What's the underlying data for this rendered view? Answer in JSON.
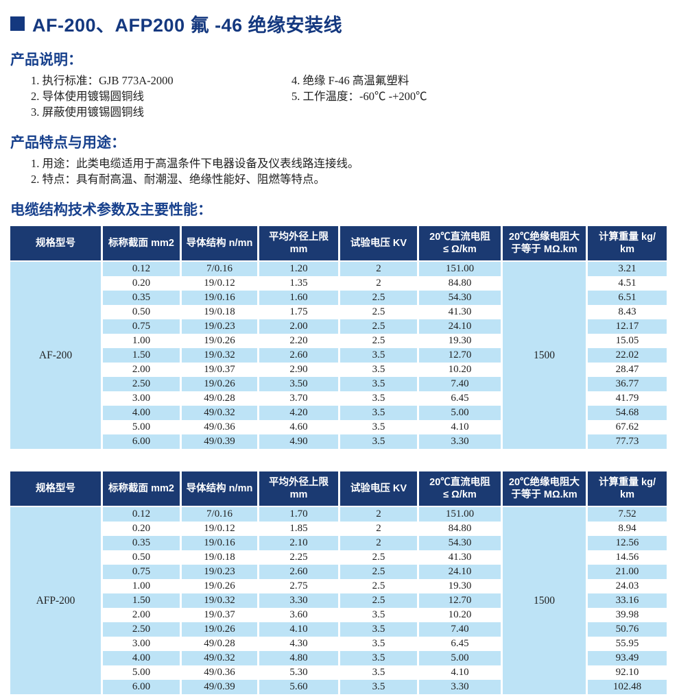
{
  "page": {
    "title": "AF-200、AFP200  氟 -46 绝缘安装线"
  },
  "colors": {
    "heading_blue": "#17408c",
    "header_navy": "#1b3a72",
    "stripe_blue": "#bde3f6"
  },
  "product_description": {
    "heading": "产品说明：",
    "items_left": [
      "1. 执行标准：GJB 773A-2000",
      "2. 导体使用镀锡圆铜线",
      "3. 屏蔽使用镀锡圆铜线"
    ],
    "items_right": [
      "4. 绝缘 F-46 高温氟塑料",
      "5. 工作温度：-60℃ -+200℃"
    ]
  },
  "features": {
    "heading": "产品特点与用途：",
    "items": [
      "1. 用途：此类电缆适用于高温条件下电器设备及仪表线路连接线。",
      "2. 特点：具有耐高温、耐潮湿、绝缘性能好、阻燃等特点。"
    ]
  },
  "table_section": {
    "heading": "电缆结构技术参数及主要性能："
  },
  "table_headers": [
    "规格型号",
    "标称截面 mm2",
    "导体结构 n/mn",
    "平均外径上限\nmm",
    "试验电压 KV",
    "20℃直流电阻\n≤ Ω/km",
    "20℃绝缘电阻大\n于等于 MΩ.km",
    "计算重量 kg/\nkm"
  ],
  "tables": [
    {
      "model": "AF-200",
      "insulation_resistance": "1500",
      "rows": [
        [
          "0.12",
          "7/0.16",
          "1.20",
          "2",
          "151.00",
          "3.21"
        ],
        [
          "0.20",
          "19/0.12",
          "1.35",
          "2",
          "84.80",
          "4.51"
        ],
        [
          "0.35",
          "19/0.16",
          "1.60",
          "2.5",
          "54.30",
          "6.51"
        ],
        [
          "0.50",
          "19/0.18",
          "1.75",
          "2.5",
          "41.30",
          "8.43"
        ],
        [
          "0.75",
          "19/0.23",
          "2.00",
          "2.5",
          "24.10",
          "12.17"
        ],
        [
          "1.00",
          "19/0.26",
          "2.20",
          "2.5",
          "19.30",
          "15.05"
        ],
        [
          "1.50",
          "19/0.32",
          "2.60",
          "3.5",
          "12.70",
          "22.02"
        ],
        [
          "2.00",
          "19/0.37",
          "2.90",
          "3.5",
          "10.20",
          "28.47"
        ],
        [
          "2.50",
          "19/0.26",
          "3.50",
          "3.5",
          "7.40",
          "36.77"
        ],
        [
          "3.00",
          "49/0.28",
          "3.70",
          "3.5",
          "6.45",
          "41.79"
        ],
        [
          "4.00",
          "49/0.32",
          "4.20",
          "3.5",
          "5.00",
          "54.68"
        ],
        [
          "5.00",
          "49/0.36",
          "4.60",
          "3.5",
          "4.10",
          "67.62"
        ],
        [
          "6.00",
          "49/0.39",
          "4.90",
          "3.5",
          "3.30",
          "77.73"
        ]
      ]
    },
    {
      "model": "AFP-200",
      "insulation_resistance": "1500",
      "rows": [
        [
          "0.12",
          "7/0.16",
          "1.70",
          "2",
          "151.00",
          "7.52"
        ],
        [
          "0.20",
          "19/0.12",
          "1.85",
          "2",
          "84.80",
          "8.94"
        ],
        [
          "0.35",
          "19/0.16",
          "2.10",
          "2",
          "54.30",
          "12.56"
        ],
        [
          "0.50",
          "19/0.18",
          "2.25",
          "2.5",
          "41.30",
          "14.56"
        ],
        [
          "0.75",
          "19/0.23",
          "2.60",
          "2.5",
          "24.10",
          "21.00"
        ],
        [
          "1.00",
          "19/0.26",
          "2.75",
          "2.5",
          "19.30",
          "24.03"
        ],
        [
          "1.50",
          "19/0.32",
          "3.30",
          "2.5",
          "12.70",
          "33.16"
        ],
        [
          "2.00",
          "19/0.37",
          "3.60",
          "3.5",
          "10.20",
          "39.98"
        ],
        [
          "2.50",
          "19/0.26",
          "4.10",
          "3.5",
          "7.40",
          "50.76"
        ],
        [
          "3.00",
          "49/0.28",
          "4.30",
          "3.5",
          "6.45",
          "55.95"
        ],
        [
          "4.00",
          "49/0.32",
          "4.80",
          "3.5",
          "5.00",
          "93.49"
        ],
        [
          "5.00",
          "49/0.36",
          "5.30",
          "3.5",
          "4.10",
          "92.10"
        ],
        [
          "6.00",
          "49/0.39",
          "5.60",
          "3.5",
          "3.30",
          "102.48"
        ]
      ]
    }
  ]
}
